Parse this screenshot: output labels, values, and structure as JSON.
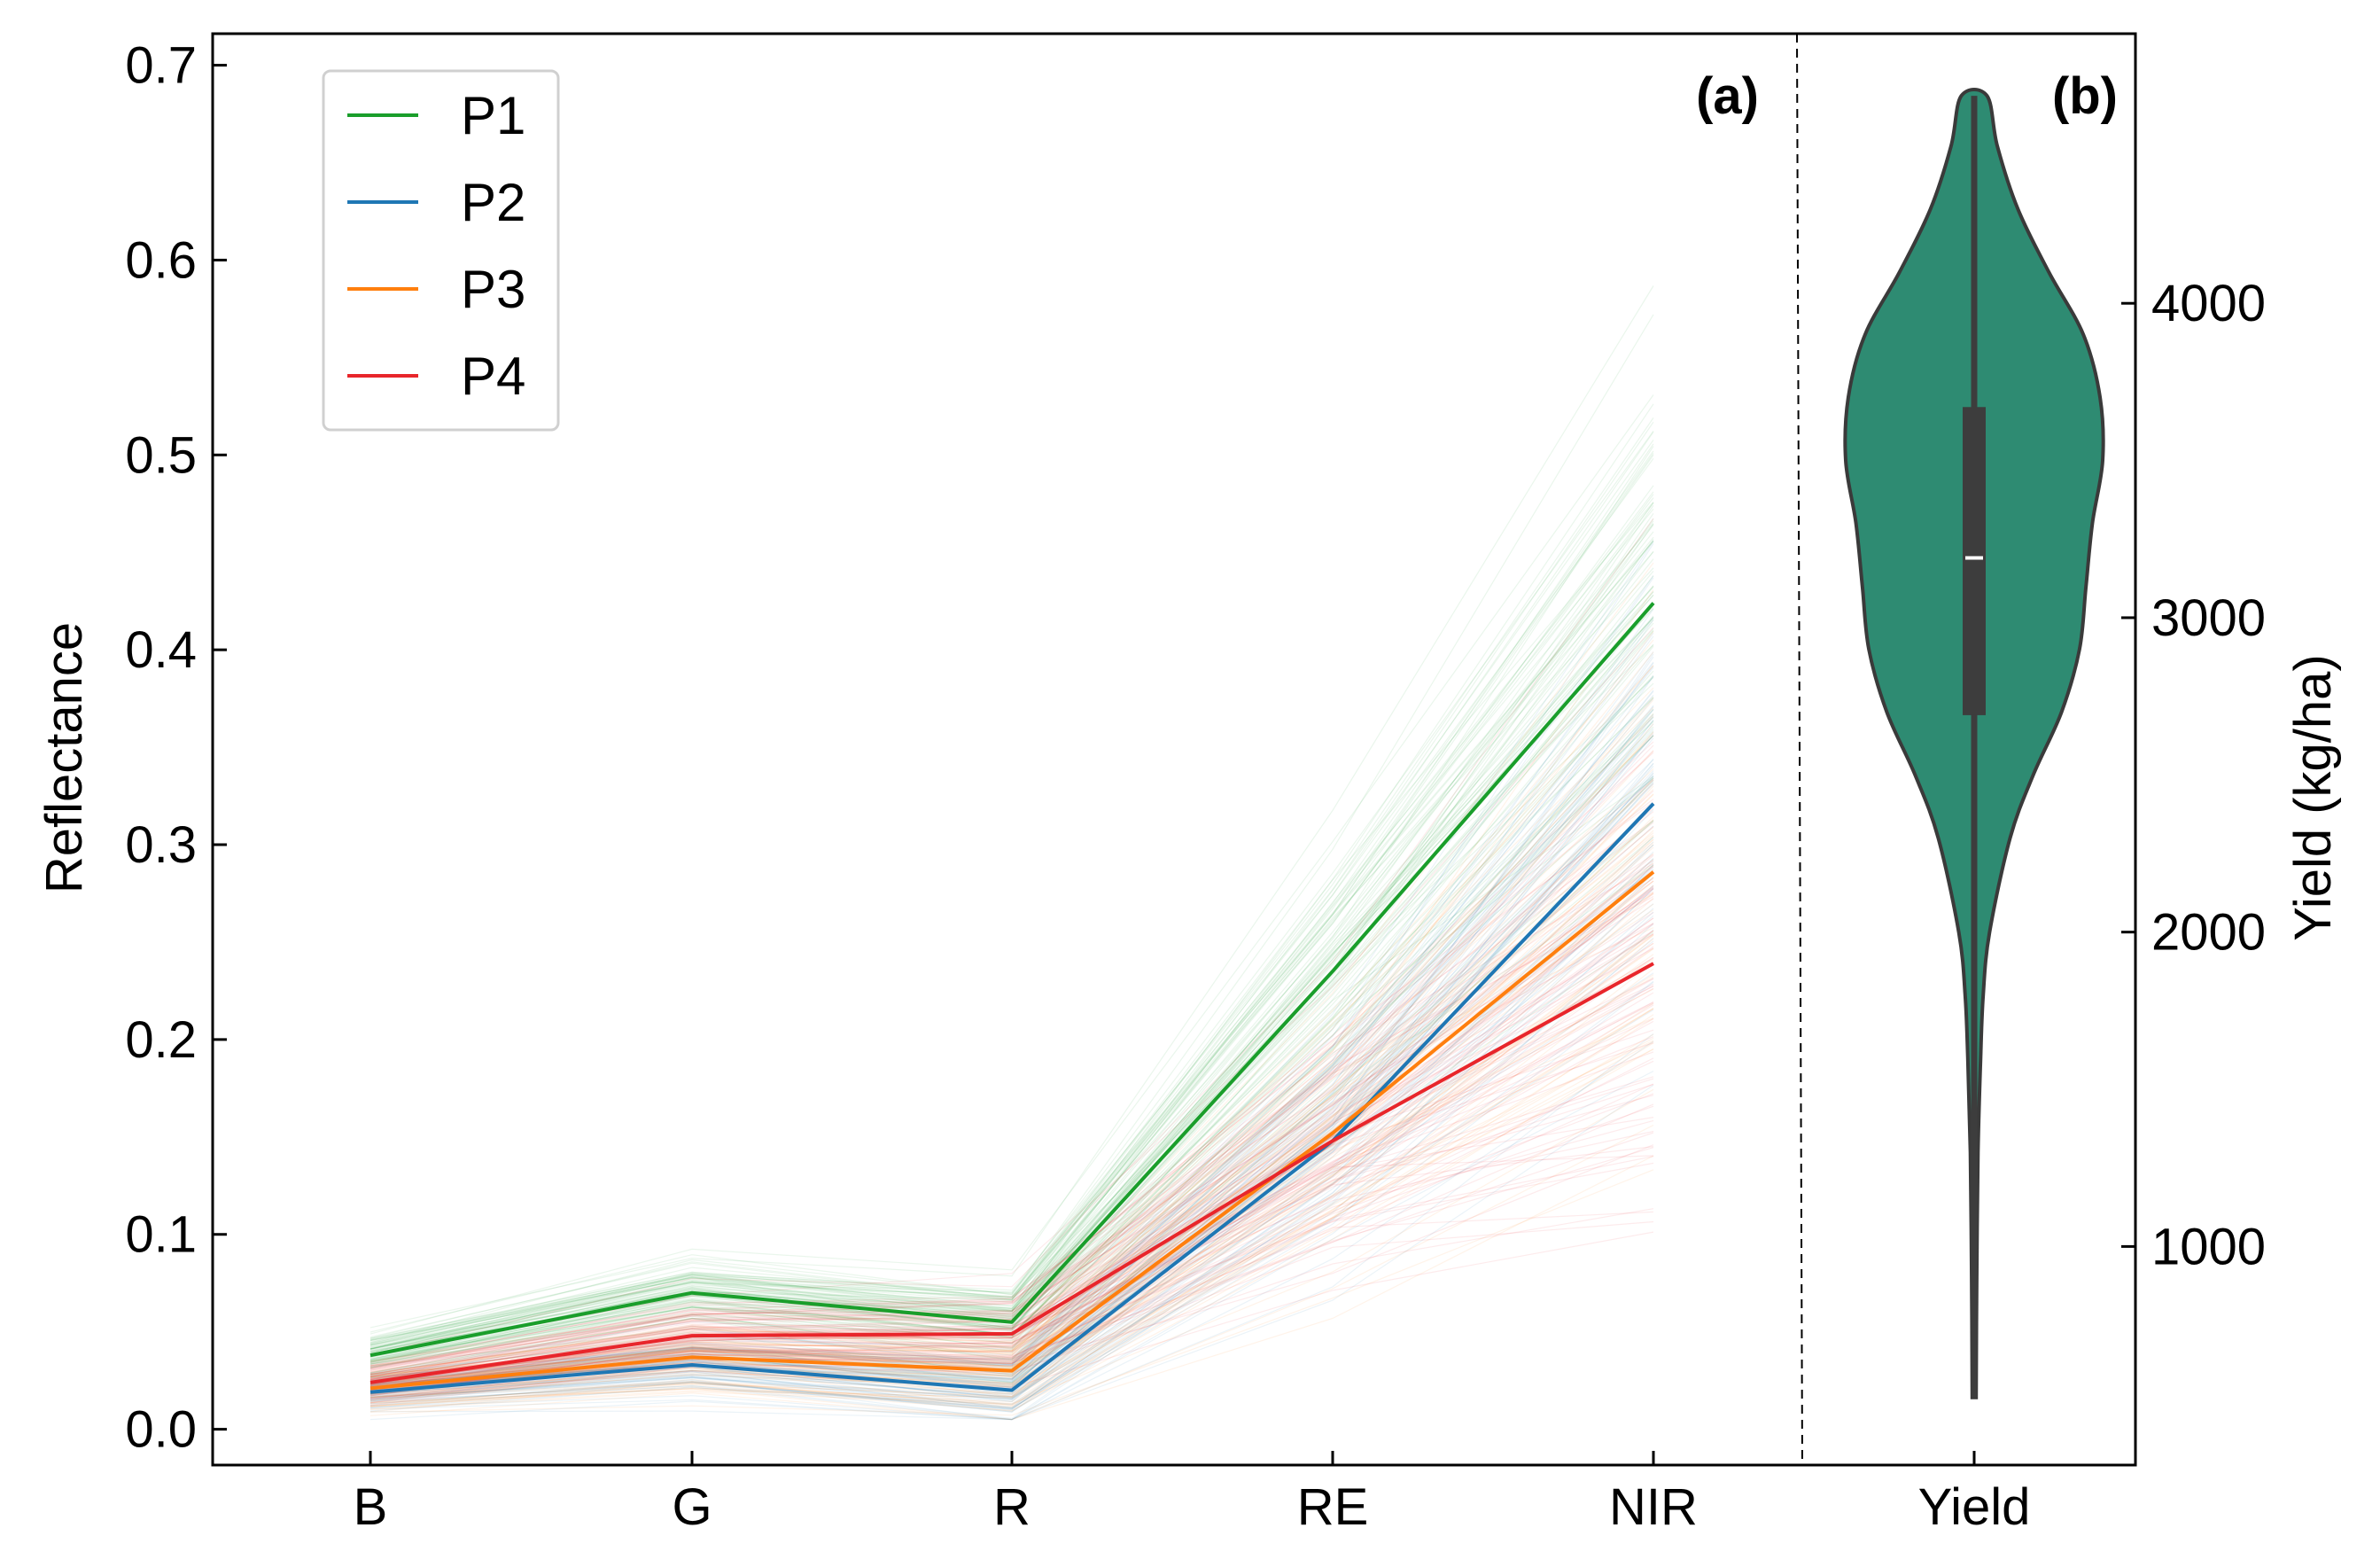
{
  "chart_data": [
    {
      "type": "line",
      "panel_label": "(a)",
      "categories": [
        "B",
        "G",
        "R",
        "RE",
        "NIR"
      ],
      "xlabel": "",
      "ylabel": "Reflectance",
      "ylim": [
        -0.02,
        0.72
      ],
      "yticks": [
        "0.0",
        "0.1",
        "0.2",
        "0.3",
        "0.4",
        "0.5",
        "0.6",
        "0.7"
      ],
      "ytick_values": [
        0.0,
        0.1,
        0.2,
        0.3,
        0.4,
        0.5,
        0.6,
        0.7
      ],
      "legend_position": "top-left",
      "series": [
        {
          "name": "P1",
          "color": "#1a9e2b",
          "values": [
            0.038,
            0.07,
            0.055,
            0.235,
            0.424
          ]
        },
        {
          "name": "P2",
          "color": "#1f77b4",
          "values": [
            0.019,
            0.033,
            0.02,
            0.148,
            0.321
          ]
        },
        {
          "name": "P3",
          "color": "#ff7f0e",
          "values": [
            0.021,
            0.037,
            0.03,
            0.152,
            0.286
          ]
        },
        {
          "name": "P4",
          "color": "#e8262b",
          "values": [
            0.024,
            0.048,
            0.049,
            0.148,
            0.239
          ]
        }
      ],
      "background_lines_note": "many faint individual reflectance curves for each group"
    },
    {
      "type": "violin",
      "panel_label": "(b)",
      "categories": [
        "Yield"
      ],
      "ylabel": "Yield (kg/ha)",
      "ylim": [
        290,
        4900
      ],
      "yticks": [
        "1000",
        "2000",
        "3000",
        "4000"
      ],
      "ytick_values": [
        1000,
        2000,
        3000,
        4000
      ],
      "fill_color": "#2e8b72",
      "min": 520,
      "q1": 2690,
      "median": 3190,
      "q3": 3670,
      "max": 4660,
      "density_profile": [
        {
          "y": 520,
          "w": 0.015
        },
        {
          "y": 900,
          "w": 0.02
        },
        {
          "y": 1300,
          "w": 0.03
        },
        {
          "y": 1600,
          "w": 0.05
        },
        {
          "y": 1800,
          "w": 0.07
        },
        {
          "y": 2000,
          "w": 0.12
        },
        {
          "y": 2300,
          "w": 0.28
        },
        {
          "y": 2500,
          "w": 0.46
        },
        {
          "y": 2700,
          "w": 0.68
        },
        {
          "y": 2900,
          "w": 0.82
        },
        {
          "y": 3100,
          "w": 0.87
        },
        {
          "y": 3300,
          "w": 0.92
        },
        {
          "y": 3500,
          "w": 1.0
        },
        {
          "y": 3700,
          "w": 0.98
        },
        {
          "y": 3900,
          "w": 0.85
        },
        {
          "y": 4100,
          "w": 0.58
        },
        {
          "y": 4300,
          "w": 0.34
        },
        {
          "y": 4500,
          "w": 0.18
        },
        {
          "y": 4660,
          "w": 0.1
        }
      ]
    }
  ]
}
